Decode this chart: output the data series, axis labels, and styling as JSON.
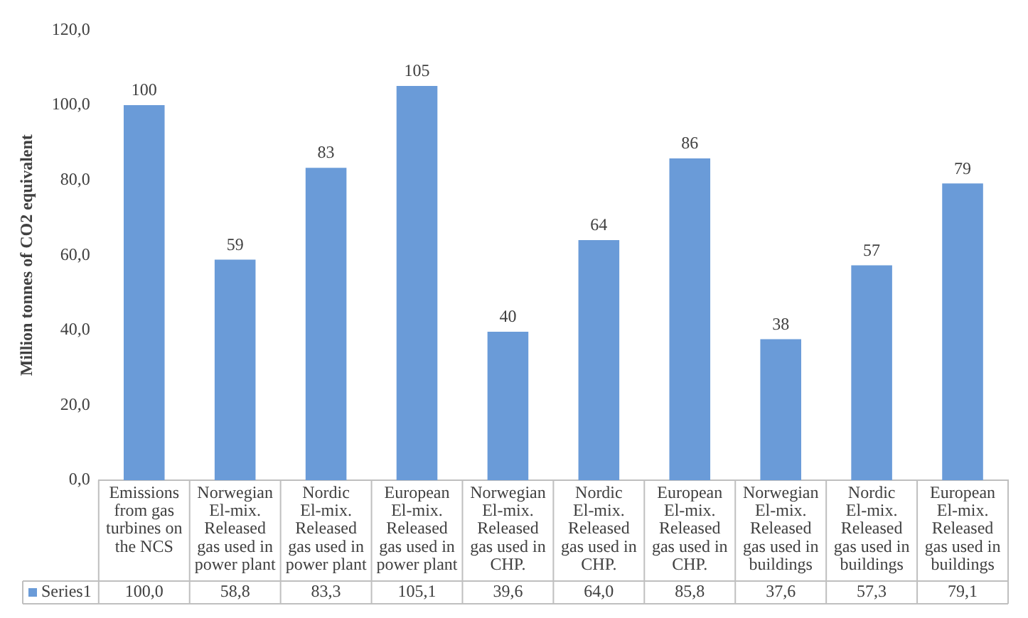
{
  "chart_data": {
    "type": "bar",
    "ylabel": "Million tonnes of CO2 equivalent",
    "categories": [
      "Emissions from gas turbines on the NCS",
      "Norwegian El-mix. Released gas used in power plant",
      "Nordic El-mix. Released gas used in power plant",
      "European El-mix. Released gas used in power plant",
      "Norwegian El-mix. Released gas used in CHP.",
      "Nordic El-mix. Released gas used in CHP.",
      "European El-mix. Released gas used in CHP.",
      "Norwegian El-mix. Released gas used in buildings",
      "Nordic El-mix. Released gas used in buildings",
      "European El-mix. Released gas used in buildings"
    ],
    "series": [
      {
        "name": "Series1",
        "color": "#6a9bd8",
        "values": [
          100.0,
          58.8,
          83.3,
          105.1,
          39.6,
          64.0,
          85.8,
          37.6,
          57.3,
          79.1
        ],
        "value_labels": [
          "100,0",
          "58,8",
          "83,3",
          "105,1",
          "39,6",
          "64,0",
          "85,8",
          "37,6",
          "57,3",
          "79,1"
        ]
      }
    ],
    "annotations": [
      {
        "text": "100",
        "x": "Emissions from gas turbines on the NCS",
        "y": 100.0
      },
      {
        "text": "59",
        "x": "Norwegian El-mix. Released gas used in power plant",
        "y": 58.8
      },
      {
        "text": "83",
        "x": "Nordic El-mix. Released gas used in power plant",
        "y": 83.3
      },
      {
        "text": "105",
        "x": "European El-mix. Released gas used in power plant",
        "y": 105.1
      },
      {
        "text": "40",
        "x": "Norwegian El-mix. Released gas used in CHP.",
        "y": 39.6
      },
      {
        "text": "64",
        "x": "Nordic El-mix. Released gas used in CHP.",
        "y": 64.0
      },
      {
        "text": "86",
        "x": "European El-mix. Released gas used in CHP.",
        "y": 85.8
      },
      {
        "text": "38",
        "x": "Norwegian El-mix. Released gas used in buildings",
        "y": 37.6
      },
      {
        "text": "57",
        "x": "Nordic El-mix. Released gas used in buildings",
        "y": 57.3
      },
      {
        "text": "79",
        "x": "European El-mix. Released gas used in buildings",
        "y": 79.1
      }
    ],
    "ylim": [
      0,
      120
    ],
    "yticks": [
      {
        "value": 0,
        "label": "0,0"
      },
      {
        "value": 20,
        "label": "20,0"
      },
      {
        "value": 40,
        "label": "40,0"
      },
      {
        "value": 60,
        "label": "60,0"
      },
      {
        "value": 80,
        "label": "80,0"
      },
      {
        "value": 100,
        "label": "100,0"
      },
      {
        "value": 120,
        "label": "120,0"
      }
    ],
    "grid": false,
    "legend": "bottom"
  }
}
